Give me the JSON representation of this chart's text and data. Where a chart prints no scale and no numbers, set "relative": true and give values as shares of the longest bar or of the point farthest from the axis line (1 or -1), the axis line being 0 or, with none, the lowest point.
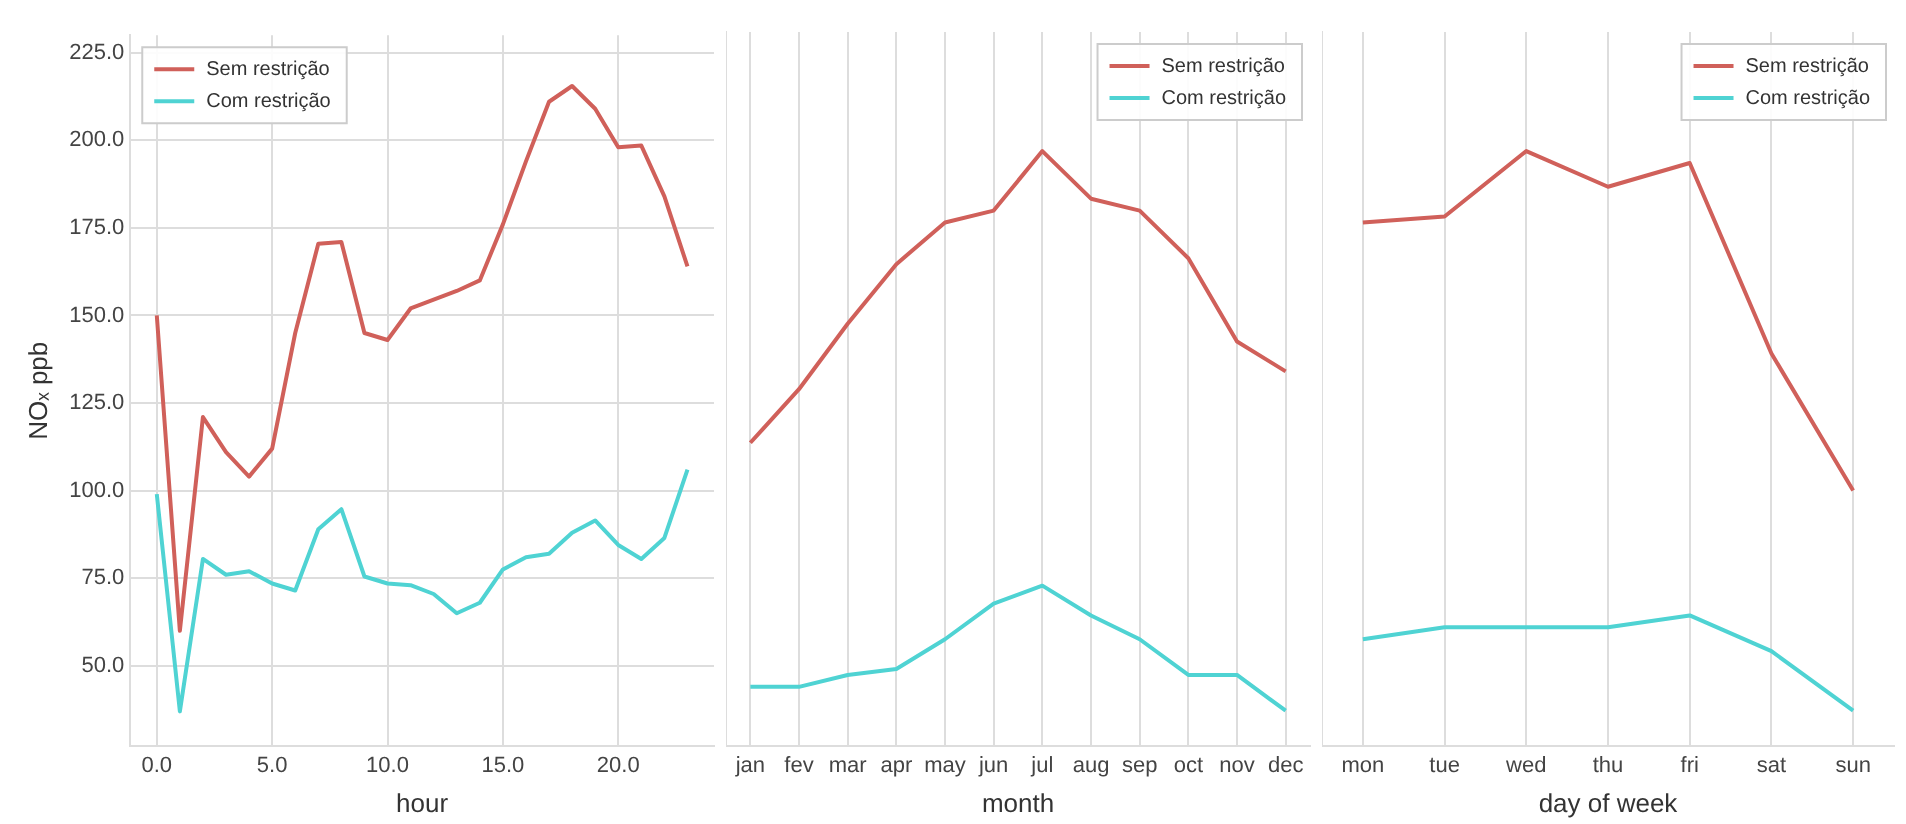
{
  "chart_data": [
    {
      "type": "line",
      "xlabel": "hour",
      "ylabel": "NOₓ ppb",
      "x": [
        0,
        1,
        2,
        3,
        4,
        5,
        6,
        7,
        8,
        9,
        10,
        11,
        12,
        13,
        14,
        15,
        16,
        17,
        18,
        19,
        20,
        21,
        22,
        23
      ],
      "xlim": [
        -1.15,
        24.15
      ],
      "xticks": [
        {
          "value": 0,
          "label": "0.0"
        },
        {
          "value": 5,
          "label": "5.0"
        },
        {
          "value": 10,
          "label": "10.0"
        },
        {
          "value": 15,
          "label": "15.0"
        },
        {
          "value": 20,
          "label": "20.0"
        }
      ],
      "ylim": [
        27,
        230
      ],
      "yticks": [
        {
          "value": 50,
          "label": "50.0"
        },
        {
          "value": 75,
          "label": "75.0"
        },
        {
          "value": 100,
          "label": "100.0"
        },
        {
          "value": 125,
          "label": "125.0"
        },
        {
          "value": 150,
          "label": "150.0"
        },
        {
          "value": 175,
          "label": "175.0"
        },
        {
          "value": 200,
          "label": "200.0"
        },
        {
          "value": 225,
          "label": "225.0"
        }
      ],
      "grid": true,
      "legend": "top left",
      "series": [
        {
          "name": "Sem restrição",
          "color": "#d0605a",
          "values": [
            150,
            60,
            121,
            111,
            104,
            112,
            145,
            170.5,
            171,
            145,
            143,
            152,
            154.5,
            157,
            160,
            176,
            194,
            211,
            215.5,
            209,
            198,
            198.5,
            184,
            164
          ]
        },
        {
          "name": "Com restrição",
          "color": "#4fd3d3",
          "values": [
            99,
            37,
            80.5,
            76,
            77,
            73.5,
            71.5,
            89,
            94.7,
            75.5,
            73.5,
            73,
            70.5,
            65,
            68,
            77.5,
            81,
            82,
            88,
            91.5,
            84.5,
            80.5,
            86.5,
            106
          ]
        }
      ]
    },
    {
      "type": "line",
      "xlabel": "month",
      "relative": true,
      "categories": [
        "jan",
        "fev",
        "mar",
        "apr",
        "may",
        "jun",
        "jul",
        "aug",
        "sep",
        "oct",
        "nov",
        "dec"
      ],
      "grid": "x",
      "legend": "top right",
      "series": [
        {
          "name": "Sem restrição",
          "color": "#d0605a",
          "values": [
            0.51,
            0.6,
            0.71,
            0.81,
            0.88,
            0.9,
            1,
            0.92,
            0.9,
            0.82,
            0.68,
            0.63
          ]
        },
        {
          "name": "Com restrição",
          "color": "#4fd3d3",
          "values": [
            0.1,
            0.1,
            0.12,
            0.13,
            0.18,
            0.24,
            0.27,
            0.22,
            0.18,
            0.12,
            0.12,
            0.06
          ]
        }
      ]
    },
    {
      "type": "line",
      "xlabel": "day of week",
      "relative": true,
      "categories": [
        "mon",
        "tue",
        "wed",
        "thu",
        "fri",
        "sat",
        "sun"
      ],
      "grid": "x",
      "legend": "top right",
      "series": [
        {
          "name": "Sem restrição",
          "color": "#d0605a",
          "values": [
            0.88,
            0.89,
            1,
            0.94,
            0.98,
            0.66,
            0.43
          ]
        },
        {
          "name": "Com restrição",
          "color": "#4fd3d3",
          "values": [
            0.18,
            0.2,
            0.2,
            0.2,
            0.22,
            0.16,
            0.06
          ]
        }
      ]
    }
  ]
}
